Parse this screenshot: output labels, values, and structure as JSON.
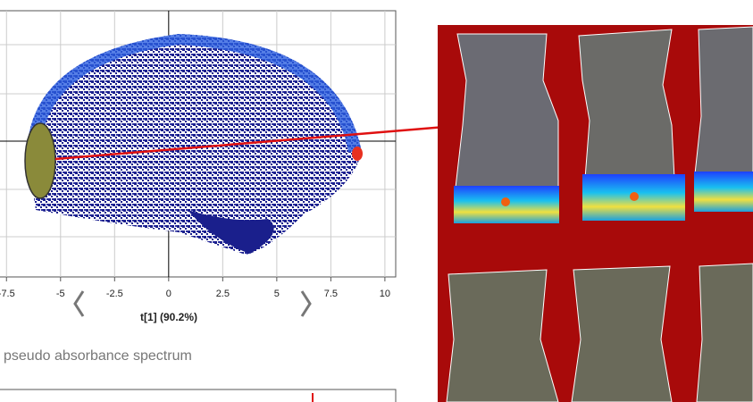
{
  "score_plot": {
    "x_label": "t[1] (90.2%)",
    "xlim": [
      -7.8,
      10.5
    ],
    "xticks": [
      -7.5,
      -5,
      -2.5,
      0,
      2.5,
      5,
      7.5,
      10
    ]
  },
  "spectrum_panel": {
    "title": "pseudo absorbance spectrum"
  }
}
